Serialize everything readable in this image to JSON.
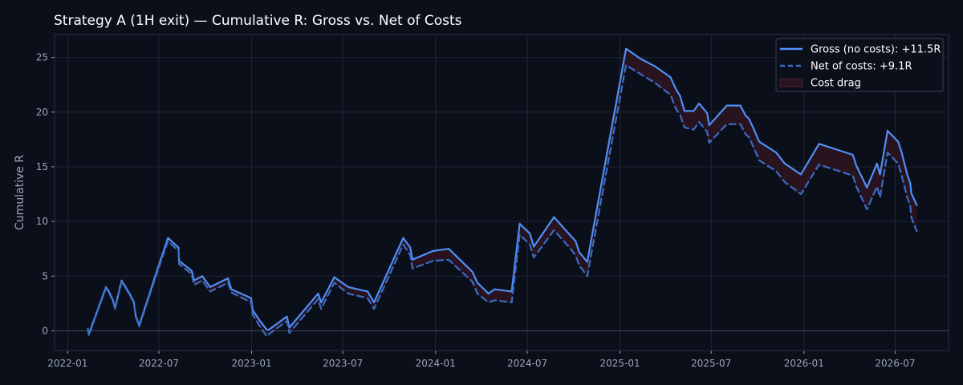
{
  "chart_data": {
    "type": "line",
    "title": "Strategy A (1H exit) — Cumulative R: Gross vs. Net of Costs",
    "xlabel": "",
    "ylabel": "Cumulative R",
    "xlim": [
      "2021-12-06",
      "2026-10-15"
    ],
    "ylim": [
      -1.8,
      27.1
    ],
    "x_ticks": [
      "2022-01",
      "2022-07",
      "2023-01",
      "2023-07",
      "2024-01",
      "2024-07",
      "2025-01",
      "2025-07",
      "2026-01",
      "2026-07"
    ],
    "y_ticks": [
      0,
      5,
      10,
      15,
      20,
      25
    ],
    "grid": true,
    "legend_position": "top-right",
    "colors": {
      "background": "#0b0f1a",
      "plot_background": "#0b0f1a",
      "grid": "#1f2636",
      "gross": "#4f8ff7",
      "net": "#3a6cc4",
      "cost_fill": "#2a1420",
      "zero_line": "#3a4458",
      "frame": "#2a3140"
    },
    "series": [
      {
        "name": "Gross (no costs): +11.5R",
        "style": "solid",
        "points": [
          [
            "2022-02-10",
            0.2
          ],
          [
            "2022-02-12",
            -0.3
          ],
          [
            "2022-03-18",
            4.0
          ],
          [
            "2022-03-25",
            3.5
          ],
          [
            "2022-04-01",
            2.8
          ],
          [
            "2022-04-05",
            2.1
          ],
          [
            "2022-04-18",
            4.6
          ],
          [
            "2022-04-30",
            3.7
          ],
          [
            "2022-05-12",
            2.7
          ],
          [
            "2022-05-16",
            1.4
          ],
          [
            "2022-05-23",
            0.5
          ],
          [
            "2022-06-28",
            5.6
          ],
          [
            "2022-07-19",
            8.5
          ],
          [
            "2022-08-09",
            7.6
          ],
          [
            "2022-08-10",
            6.4
          ],
          [
            "2022-09-04",
            5.5
          ],
          [
            "2022-09-09",
            4.6
          ],
          [
            "2022-09-25",
            5.0
          ],
          [
            "2022-10-11",
            4.0
          ],
          [
            "2022-11-15",
            4.8
          ],
          [
            "2022-11-22",
            3.8
          ],
          [
            "2022-12-31",
            3.0
          ],
          [
            "2023-01-03",
            1.9
          ],
          [
            "2023-01-16",
            1.0
          ],
          [
            "2023-01-31",
            0.1
          ],
          [
            "2023-02-04",
            0.1
          ],
          [
            "2023-03-12",
            1.3
          ],
          [
            "2023-03-17",
            0.3
          ],
          [
            "2023-05-13",
            3.4
          ],
          [
            "2023-05-19",
            2.6
          ],
          [
            "2023-06-14",
            4.9
          ],
          [
            "2023-07-12",
            4.0
          ],
          [
            "2023-08-19",
            3.6
          ],
          [
            "2023-09-01",
            2.6
          ],
          [
            "2023-10-29",
            8.5
          ],
          [
            "2023-11-12",
            7.6
          ],
          [
            "2023-11-16",
            6.5
          ],
          [
            "2023-12-27",
            7.3
          ],
          [
            "2024-01-27",
            7.5
          ],
          [
            "2024-03-14",
            5.4
          ],
          [
            "2024-03-24",
            4.4
          ],
          [
            "2024-04-15",
            3.4
          ],
          [
            "2024-04-27",
            3.8
          ],
          [
            "2024-05-31",
            3.6
          ],
          [
            "2024-06-16",
            9.8
          ],
          [
            "2024-07-06",
            8.9
          ],
          [
            "2024-07-14",
            7.7
          ],
          [
            "2024-08-23",
            10.4
          ],
          [
            "2024-09-23",
            8.8
          ],
          [
            "2024-10-05",
            8.2
          ],
          [
            "2024-10-12",
            7.2
          ],
          [
            "2024-10-28",
            6.3
          ],
          [
            "2025-01-13",
            25.8
          ],
          [
            "2025-02-10",
            24.9
          ],
          [
            "2025-03-11",
            24.2
          ],
          [
            "2025-04-11",
            23.2
          ],
          [
            "2025-04-22",
            22.1
          ],
          [
            "2025-04-30",
            21.5
          ],
          [
            "2025-05-09",
            20.1
          ],
          [
            "2025-05-27",
            20.1
          ],
          [
            "2025-06-07",
            20.8
          ],
          [
            "2025-06-23",
            19.9
          ],
          [
            "2025-06-27",
            18.8
          ],
          [
            "2025-08-01",
            20.6
          ],
          [
            "2025-08-28",
            20.6
          ],
          [
            "2025-09-07",
            19.7
          ],
          [
            "2025-09-14",
            19.4
          ],
          [
            "2025-09-23",
            18.5
          ],
          [
            "2025-10-04",
            17.3
          ],
          [
            "2025-11-07",
            16.3
          ],
          [
            "2025-11-24",
            15.3
          ],
          [
            "2025-12-26",
            14.3
          ],
          [
            "2026-01-31",
            17.1
          ],
          [
            "2026-04-08",
            16.1
          ],
          [
            "2026-04-15",
            15.1
          ],
          [
            "2026-05-06",
            13.1
          ],
          [
            "2026-05-26",
            15.3
          ],
          [
            "2026-06-01",
            14.3
          ],
          [
            "2026-06-16",
            18.3
          ],
          [
            "2026-07-07",
            17.3
          ],
          [
            "2026-07-14",
            16.3
          ],
          [
            "2026-07-25",
            14.3
          ],
          [
            "2026-07-31",
            13.5
          ],
          [
            "2026-08-02",
            12.6
          ],
          [
            "2026-08-13",
            11.5
          ]
        ]
      },
      {
        "name": "Net of costs: +9.1R",
        "style": "dashed",
        "points": [
          [
            "2022-02-10",
            0.2
          ],
          [
            "2022-02-12",
            -0.4
          ],
          [
            "2022-03-18",
            3.9
          ],
          [
            "2022-03-25",
            3.4
          ],
          [
            "2022-04-01",
            2.7
          ],
          [
            "2022-04-05",
            2.0
          ],
          [
            "2022-04-18",
            4.5
          ],
          [
            "2022-04-30",
            3.6
          ],
          [
            "2022-05-12",
            2.6
          ],
          [
            "2022-05-16",
            1.3
          ],
          [
            "2022-05-23",
            0.4
          ],
          [
            "2022-06-28",
            5.4
          ],
          [
            "2022-07-19",
            8.2
          ],
          [
            "2022-08-09",
            7.3
          ],
          [
            "2022-08-10",
            6.1
          ],
          [
            "2022-09-04",
            5.2
          ],
          [
            "2022-09-09",
            4.2
          ],
          [
            "2022-09-25",
            4.6
          ],
          [
            "2022-10-11",
            3.6
          ],
          [
            "2022-11-15",
            4.4
          ],
          [
            "2022-11-22",
            3.5
          ],
          [
            "2022-12-31",
            2.6
          ],
          [
            "2023-01-03",
            1.5
          ],
          [
            "2023-01-16",
            0.5
          ],
          [
            "2023-01-31",
            -0.5
          ],
          [
            "2023-02-04",
            -0.3
          ],
          [
            "2023-03-12",
            0.9
          ],
          [
            "2023-03-17",
            -0.2
          ],
          [
            "2023-05-13",
            2.9
          ],
          [
            "2023-05-19",
            2.0
          ],
          [
            "2023-06-14",
            4.4
          ],
          [
            "2023-07-12",
            3.4
          ],
          [
            "2023-08-19",
            3.0
          ],
          [
            "2023-09-01",
            2.0
          ],
          [
            "2023-10-29",
            7.9
          ],
          [
            "2023-11-12",
            6.9
          ],
          [
            "2023-11-16",
            5.7
          ],
          [
            "2023-12-27",
            6.4
          ],
          [
            "2024-01-27",
            6.5
          ],
          [
            "2024-03-14",
            4.5
          ],
          [
            "2024-03-24",
            3.4
          ],
          [
            "2024-04-15",
            2.6
          ],
          [
            "2024-04-27",
            2.8
          ],
          [
            "2024-05-31",
            2.6
          ],
          [
            "2024-06-16",
            8.8
          ],
          [
            "2024-07-06",
            7.9
          ],
          [
            "2024-07-14",
            6.7
          ],
          [
            "2024-08-23",
            9.2
          ],
          [
            "2024-09-23",
            7.6
          ],
          [
            "2024-10-05",
            6.9
          ],
          [
            "2024-10-12",
            6.0
          ],
          [
            "2024-10-28",
            5.0
          ],
          [
            "2025-01-13",
            24.3
          ],
          [
            "2025-02-10",
            23.5
          ],
          [
            "2025-03-11",
            22.7
          ],
          [
            "2025-04-11",
            21.6
          ],
          [
            "2025-04-22",
            20.3
          ],
          [
            "2025-04-30",
            19.8
          ],
          [
            "2025-05-09",
            18.6
          ],
          [
            "2025-05-27",
            18.4
          ],
          [
            "2025-06-07",
            19.1
          ],
          [
            "2025-06-23",
            18.2
          ],
          [
            "2025-06-27",
            17.2
          ],
          [
            "2025-08-01",
            18.9
          ],
          [
            "2025-08-28",
            18.9
          ],
          [
            "2025-09-07",
            18.0
          ],
          [
            "2025-09-14",
            17.7
          ],
          [
            "2025-09-23",
            16.8
          ],
          [
            "2025-10-04",
            15.6
          ],
          [
            "2025-11-07",
            14.6
          ],
          [
            "2025-11-24",
            13.6
          ],
          [
            "2025-12-26",
            12.5
          ],
          [
            "2026-01-31",
            15.2
          ],
          [
            "2026-04-08",
            14.2
          ],
          [
            "2026-04-15",
            13.2
          ],
          [
            "2026-05-06",
            11.1
          ],
          [
            "2026-05-26",
            13.2
          ],
          [
            "2026-06-01",
            12.2
          ],
          [
            "2026-06-16",
            16.3
          ],
          [
            "2026-07-07",
            15.3
          ],
          [
            "2026-07-14",
            14.2
          ],
          [
            "2026-07-25",
            12.2
          ],
          [
            "2026-07-31",
            11.4
          ],
          [
            "2026-08-02",
            10.4
          ],
          [
            "2026-08-13",
            9.1
          ]
        ]
      }
    ],
    "fill": {
      "name": "Cost drag",
      "between": [
        "Gross (no costs): +11.5R",
        "Net of costs: +9.1R"
      ]
    }
  }
}
